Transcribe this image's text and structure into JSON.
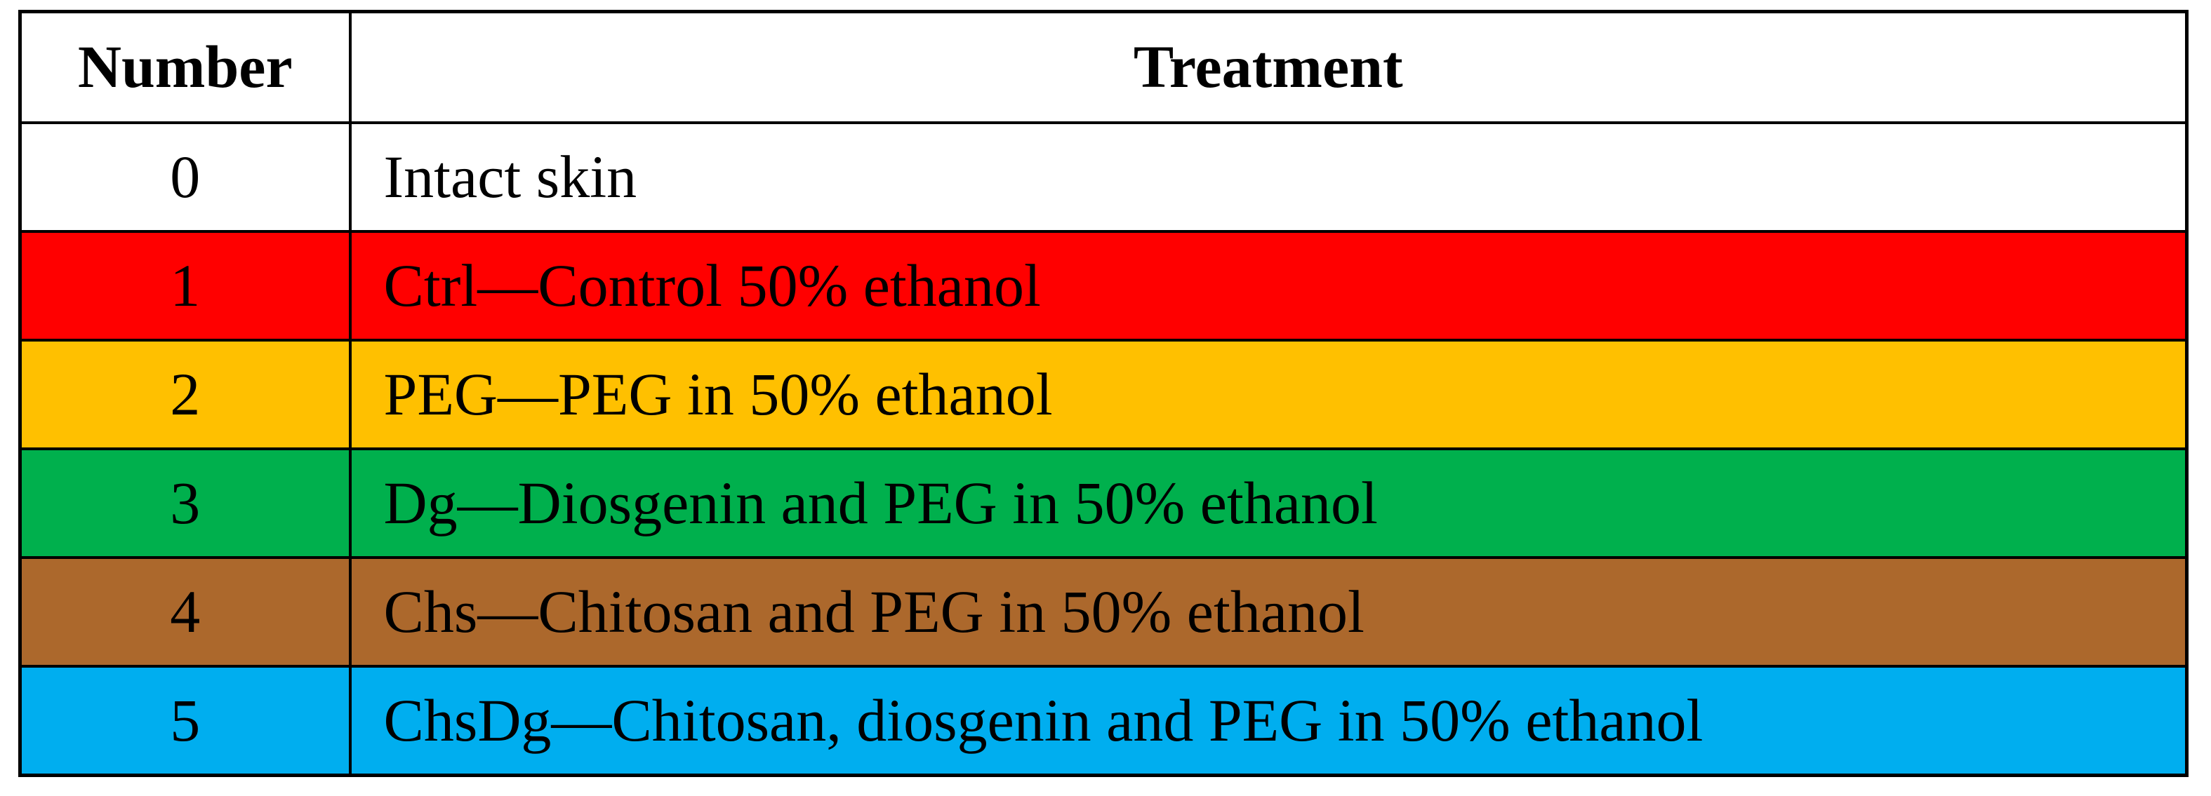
{
  "figure": {
    "type": "table",
    "header": {
      "number": "Number",
      "treatment": "Treatment"
    },
    "rows": [
      {
        "number": "0",
        "treatment": "Intact skin",
        "bg": "#FFFFFF"
      },
      {
        "number": "1",
        "treatment": "Ctrl—Control 50% ethanol",
        "bg": "#FF0000"
      },
      {
        "number": "2",
        "treatment": "PEG—PEG in 50% ethanol",
        "bg": "#FFC000"
      },
      {
        "number": "3",
        "treatment": "Dg—Diosgenin and PEG in 50% ethanol",
        "bg": "#00B04D"
      },
      {
        "number": "4",
        "treatment": "Chs—Chitosan and PEG in 50% ethanol",
        "bg": "#AC682C"
      },
      {
        "number": "5",
        "treatment": "ChsDg—Chitosan, diosgenin and PEG in 50% ethanol",
        "bg": "#00AEEF"
      }
    ],
    "colors": {
      "border": "#000000",
      "text": "#000000",
      "page_background": "#FFFFFF"
    }
  }
}
